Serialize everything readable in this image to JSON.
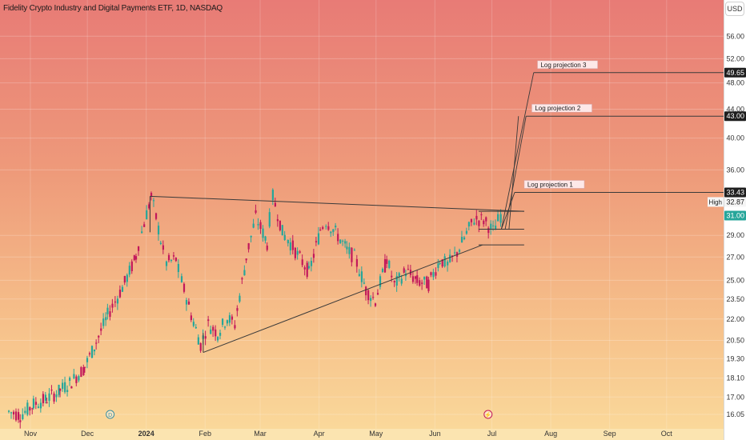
{
  "title": "Fidelity Crypto Industry and Digital Payments ETF, 1D, NASDAQ",
  "currency": "USD",
  "price_axis": {
    "ticks": [
      "56.00",
      "52.00",
      "48.00",
      "44.00",
      "40.00",
      "36.00",
      "29.00",
      "27.00",
      "25.00",
      "23.50",
      "22.00",
      "20.50",
      "19.30",
      "18.10",
      "17.00",
      "16.05"
    ]
  },
  "time_axis": {
    "labels": [
      "Nov",
      "Dec",
      "2024",
      "Feb",
      "Mar",
      "Apr",
      "May",
      "Jun",
      "Jul",
      "Aug",
      "Sep",
      "Oct"
    ]
  },
  "price_badges": [
    {
      "text": "49.65",
      "style": "dark"
    },
    {
      "text": "43.00",
      "style": "dark"
    },
    {
      "text": "33.43",
      "style": "dark"
    },
    {
      "text": "32.87",
      "style": "light",
      "tag": "High"
    },
    {
      "text": "31.00",
      "style": "green"
    }
  ],
  "projections": [
    "Log projection 3",
    "Log projection 2",
    "Log projection 1"
  ],
  "colors": {
    "up": "#26a69a",
    "down": "#c2185b",
    "line": "#3a3a3a",
    "badge_dark": "#1e1e1e",
    "badge_green": "#26a69a"
  },
  "chart_data": {
    "type": "candlestick",
    "title": "Fidelity Crypto Industry and Digital Payments ETF, 1D, NASDAQ",
    "y_scale": "log",
    "ylim": [
      15.8,
      58
    ],
    "x_range": [
      "2023-10-16",
      "2024-10-31"
    ],
    "last_price": 31.0,
    "high_marker": 32.87,
    "candles": [
      [
        "2023-10-20",
        16.2
      ],
      [
        "2023-10-26",
        16.0
      ],
      [
        "2023-11-02",
        16.6
      ],
      [
        "2023-11-09",
        16.9
      ],
      [
        "2023-11-16",
        17.4
      ],
      [
        "2023-11-22",
        17.9
      ],
      [
        "2023-11-29",
        18.8
      ],
      [
        "2023-12-05",
        20.4
      ],
      [
        "2023-12-11",
        22.3
      ],
      [
        "2023-12-15",
        23.3
      ],
      [
        "2023-12-20",
        24.8
      ],
      [
        "2023-12-26",
        27.1
      ],
      [
        "2023-12-29",
        29.3
      ],
      [
        "2024-01-03",
        33.0
      ],
      [
        "2024-01-08",
        28.5
      ],
      [
        "2024-01-11",
        26.5
      ],
      [
        "2024-01-16",
        26.8
      ],
      [
        "2024-01-19",
        24.9
      ],
      [
        "2024-01-24",
        22.3
      ],
      [
        "2024-01-29",
        20.2
      ],
      [
        "2024-02-02",
        21.6
      ],
      [
        "2024-02-07",
        21.0
      ],
      [
        "2024-02-12",
        22.1
      ],
      [
        "2024-02-16",
        21.6
      ],
      [
        "2024-02-22",
        27.0
      ],
      [
        "2024-02-27",
        30.8
      ],
      [
        "2024-03-04",
        28.2
      ],
      [
        "2024-03-07",
        33.0
      ],
      [
        "2024-03-12",
        29.3
      ],
      [
        "2024-03-15",
        28.6
      ],
      [
        "2024-03-20",
        27.2
      ],
      [
        "2024-03-26",
        25.6
      ],
      [
        "2024-04-01",
        29.6
      ],
      [
        "2024-04-04",
        30.4
      ],
      [
        "2024-04-09",
        29.3
      ],
      [
        "2024-04-15",
        27.6
      ],
      [
        "2024-04-19",
        27.0
      ],
      [
        "2024-04-25",
        24.2
      ],
      [
        "2024-04-30",
        23.4
      ],
      [
        "2024-05-06",
        26.9
      ],
      [
        "2024-05-10",
        24.6
      ],
      [
        "2024-05-16",
        25.8
      ],
      [
        "2024-05-22",
        24.9
      ],
      [
        "2024-05-28",
        24.7
      ],
      [
        "2024-06-03",
        26.8
      ],
      [
        "2024-06-07",
        26.3
      ],
      [
        "2024-06-12",
        27.4
      ],
      [
        "2024-06-17",
        29.2
      ],
      [
        "2024-06-21",
        30.6
      ],
      [
        "2024-06-26",
        30.5
      ],
      [
        "2024-07-01",
        29.4
      ],
      [
        "2024-07-05",
        31.0
      ]
    ],
    "lines": [
      {
        "name": "resistance",
        "from": [
          "2024-01-03",
          33.0
        ],
        "to": [
          "2024-07-18",
          31.4
        ]
      },
      {
        "name": "support",
        "from": [
          "2024-01-31",
          19.7
        ],
        "to": [
          "2024-06-26",
          28.1
        ]
      }
    ],
    "horizontal_levels": [
      49.65,
      43.0,
      33.43,
      31.4,
      29.6,
      28.1
    ],
    "annotations": [
      "Log projection 3",
      "Log projection 2",
      "Log projection 1"
    ]
  }
}
